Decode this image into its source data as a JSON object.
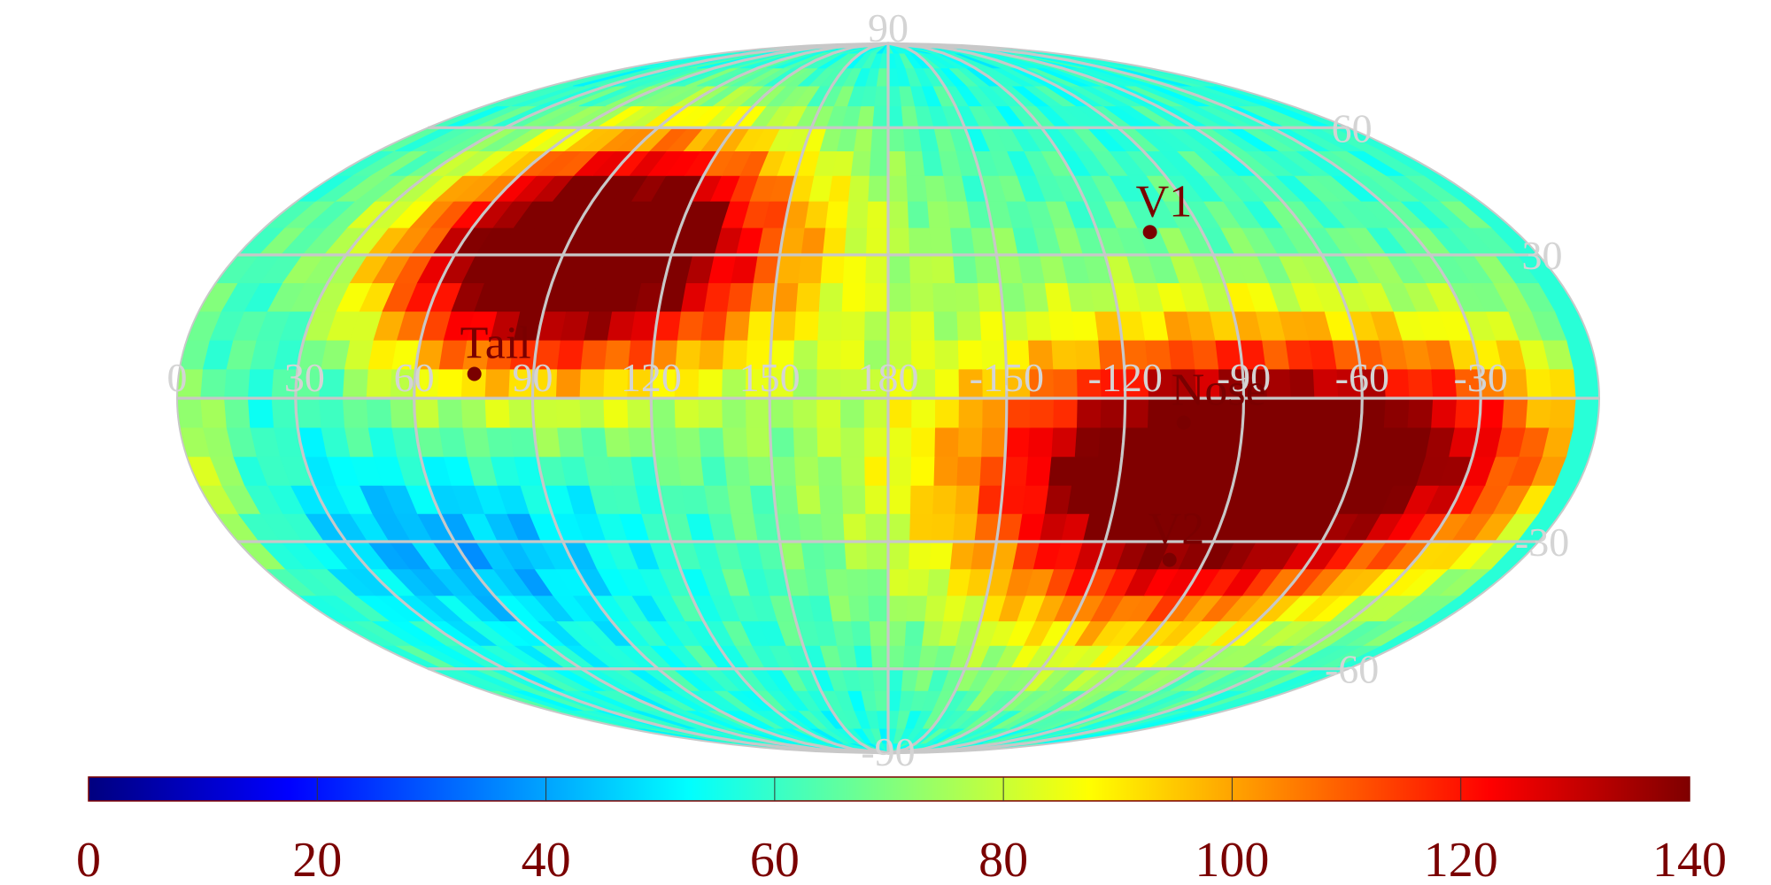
{
  "chart_data": {
    "type": "heatmap",
    "projection": "mollweide",
    "title": "",
    "xlabel": "",
    "ylabel": "",
    "colormap": "jet",
    "clim": [
      0,
      140
    ],
    "grid": true,
    "longitude_labels": [
      "-30",
      "-60",
      "-90",
      "-120",
      "-150",
      "180",
      "150",
      "120",
      "90",
      "60",
      "30",
      "0"
    ],
    "latitude_labels": [
      "90",
      "60",
      "30",
      "-30",
      "-60",
      "-90"
    ],
    "latitude_label_values": [
      90,
      60,
      30,
      -30,
      -60,
      -90
    ],
    "longitude_label_values": [
      -30,
      -60,
      -90,
      -120,
      -150,
      180,
      150,
      120,
      90,
      60,
      30,
      0
    ],
    "colorbar": {
      "ticks": [
        "0",
        "20",
        "40",
        "60",
        "80",
        "100",
        "120",
        "140"
      ],
      "tick_values": [
        0,
        20,
        40,
        60,
        80,
        100,
        120,
        140
      ]
    },
    "markers": [
      {
        "name": "V1",
        "lon": -105,
        "lat": 35
      },
      {
        "name": "Nose",
        "lon": -105,
        "lat": -5
      },
      {
        "name": "V2",
        "lon": -100,
        "lat": -34
      },
      {
        "name": "Tail",
        "lon": 75,
        "lat": 5
      }
    ],
    "hotspots": [
      {
        "lon": -70,
        "lat": -12,
        "peak": 132,
        "width_lon": 55,
        "width_lat": 18
      },
      {
        "lon": -105,
        "lat": -25,
        "peak": 110,
        "width_lon": 45,
        "width_lat": 25
      },
      {
        "lon": 90,
        "lat": 30,
        "peak": 128,
        "width_lon": 35,
        "width_lat": 18
      },
      {
        "lon": 110,
        "lat": 35,
        "peak": 105,
        "width_lon": 45,
        "width_lat": 20
      }
    ],
    "coldspots": [
      {
        "lon": 60,
        "lat": -30,
        "depth": 22,
        "width_lon": 35,
        "width_lat": 15
      },
      {
        "lon": 20,
        "lat": 0,
        "depth": 20,
        "width_lon": 20,
        "width_lat": 25
      }
    ]
  }
}
